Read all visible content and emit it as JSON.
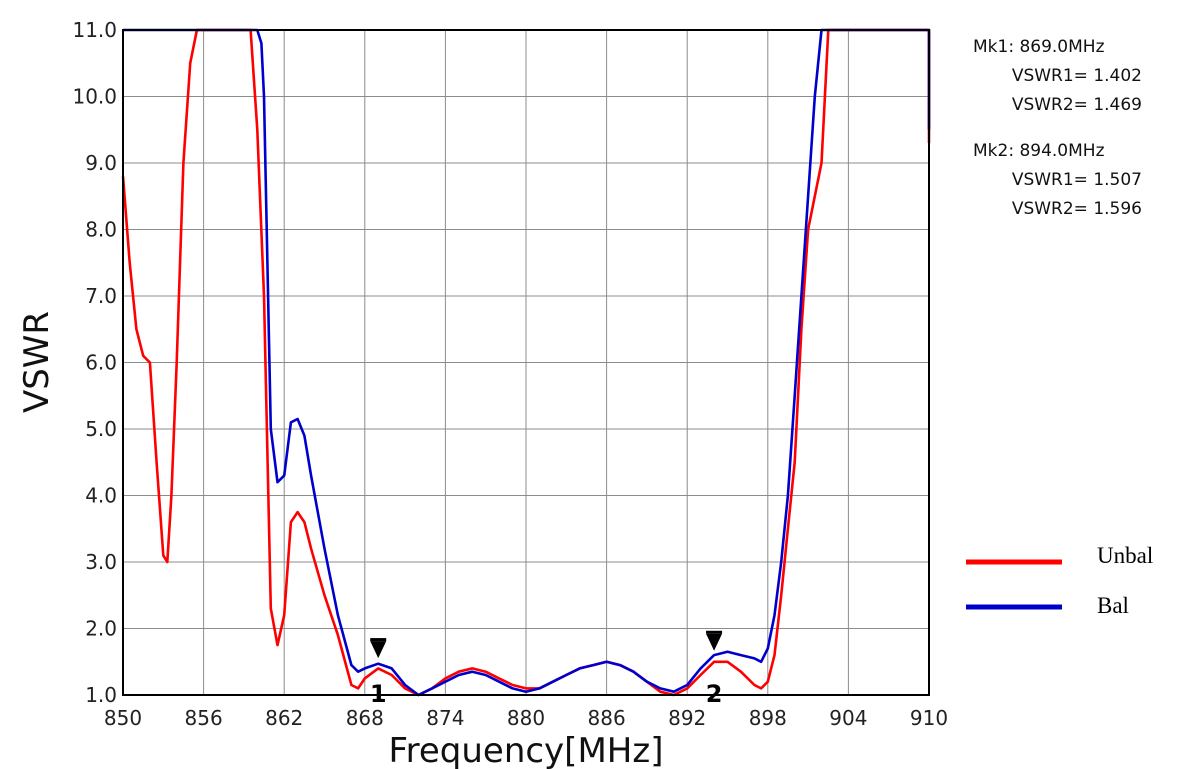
{
  "chart_data": {
    "type": "line",
    "xlabel": "Frequency[MHz]",
    "ylabel": "VSWR",
    "xlim": [
      850,
      910
    ],
    "ylim": [
      1.0,
      11.0
    ],
    "x_ticks": [
      "850",
      "856",
      "862",
      "868",
      "874",
      "880",
      "886",
      "892",
      "898",
      "904",
      "910"
    ],
    "y_ticks": [
      "1.0",
      "2.0",
      "3.0",
      "4.0",
      "5.0",
      "6.0",
      "7.0",
      "8.0",
      "9.0",
      "10.0",
      "11.0"
    ],
    "grid": true,
    "legend_position": "right",
    "series": [
      {
        "name": "Unbal",
        "color": "#ff0000",
        "points": [
          [
            850.0,
            8.8
          ],
          [
            850.5,
            7.5
          ],
          [
            851.0,
            6.5
          ],
          [
            851.5,
            6.1
          ],
          [
            852.0,
            6.0
          ],
          [
            852.5,
            4.5
          ],
          [
            853.0,
            3.1
          ],
          [
            853.3,
            3.0
          ],
          [
            853.6,
            4.0
          ],
          [
            854.0,
            6.0
          ],
          [
            854.5,
            9.0
          ],
          [
            855.0,
            10.5
          ],
          [
            855.5,
            11.0
          ],
          [
            856.0,
            11.0
          ],
          [
            858.0,
            11.0
          ],
          [
            859.5,
            11.0
          ],
          [
            860.0,
            9.5
          ],
          [
            860.5,
            7.0
          ],
          [
            861.0,
            2.3
          ],
          [
            861.5,
            1.75
          ],
          [
            862.0,
            2.2
          ],
          [
            862.5,
            3.6
          ],
          [
            863.0,
            3.75
          ],
          [
            863.5,
            3.6
          ],
          [
            864.0,
            3.2
          ],
          [
            865.0,
            2.5
          ],
          [
            866.0,
            1.9
          ],
          [
            867.0,
            1.15
          ],
          [
            867.5,
            1.1
          ],
          [
            868.0,
            1.25
          ],
          [
            869.0,
            1.4
          ],
          [
            870.0,
            1.3
          ],
          [
            871.0,
            1.1
          ],
          [
            872.0,
            1.0
          ],
          [
            873.0,
            1.1
          ],
          [
            874.0,
            1.25
          ],
          [
            875.0,
            1.35
          ],
          [
            876.0,
            1.4
          ],
          [
            877.0,
            1.35
          ],
          [
            878.0,
            1.25
          ],
          [
            879.0,
            1.15
          ],
          [
            880.0,
            1.1
          ],
          [
            881.0,
            1.1
          ],
          [
            882.0,
            1.2
          ],
          [
            883.0,
            1.3
          ],
          [
            884.0,
            1.4
          ],
          [
            885.0,
            1.45
          ],
          [
            886.0,
            1.5
          ],
          [
            887.0,
            1.45
          ],
          [
            888.0,
            1.35
          ],
          [
            889.0,
            1.2
          ],
          [
            890.0,
            1.05
          ],
          [
            891.0,
            1.0
          ],
          [
            892.0,
            1.1
          ],
          [
            893.0,
            1.3
          ],
          [
            894.0,
            1.5
          ],
          [
            895.0,
            1.5
          ],
          [
            896.0,
            1.35
          ],
          [
            897.0,
            1.15
          ],
          [
            897.5,
            1.1
          ],
          [
            898.0,
            1.2
          ],
          [
            898.5,
            1.6
          ],
          [
            899.0,
            2.5
          ],
          [
            899.5,
            3.5
          ],
          [
            900.0,
            4.5
          ],
          [
            900.5,
            6.5
          ],
          [
            901.0,
            8.0
          ],
          [
            901.5,
            8.5
          ],
          [
            902.0,
            9.0
          ],
          [
            902.5,
            11.0
          ],
          [
            904.0,
            11.0
          ],
          [
            906.0,
            11.0
          ],
          [
            908.0,
            11.0
          ],
          [
            910.0,
            11.0
          ],
          [
            910.0,
            9.3
          ]
        ]
      },
      {
        "name": "Bal",
        "color": "#0000cc",
        "points": [
          [
            850.0,
            11.0
          ],
          [
            852.0,
            11.0
          ],
          [
            854.0,
            11.0
          ],
          [
            856.0,
            11.0
          ],
          [
            858.0,
            11.0
          ],
          [
            860.0,
            11.0
          ],
          [
            860.3,
            10.8
          ],
          [
            860.5,
            10.0
          ],
          [
            861.0,
            5.0
          ],
          [
            861.5,
            4.2
          ],
          [
            862.0,
            4.3
          ],
          [
            862.5,
            5.1
          ],
          [
            863.0,
            5.15
          ],
          [
            863.5,
            4.9
          ],
          [
            864.0,
            4.3
          ],
          [
            865.0,
            3.2
          ],
          [
            866.0,
            2.2
          ],
          [
            867.0,
            1.45
          ],
          [
            867.5,
            1.35
          ],
          [
            868.0,
            1.4
          ],
          [
            869.0,
            1.47
          ],
          [
            870.0,
            1.4
          ],
          [
            871.0,
            1.15
          ],
          [
            872.0,
            1.0
          ],
          [
            873.0,
            1.1
          ],
          [
            874.0,
            1.2
          ],
          [
            875.0,
            1.3
          ],
          [
            876.0,
            1.35
          ],
          [
            877.0,
            1.3
          ],
          [
            878.0,
            1.2
          ],
          [
            879.0,
            1.1
          ],
          [
            880.0,
            1.05
          ],
          [
            881.0,
            1.1
          ],
          [
            882.0,
            1.2
          ],
          [
            883.0,
            1.3
          ],
          [
            884.0,
            1.4
          ],
          [
            885.0,
            1.45
          ],
          [
            886.0,
            1.5
          ],
          [
            887.0,
            1.45
          ],
          [
            888.0,
            1.35
          ],
          [
            889.0,
            1.2
          ],
          [
            890.0,
            1.1
          ],
          [
            891.0,
            1.05
          ],
          [
            892.0,
            1.15
          ],
          [
            893.0,
            1.4
          ],
          [
            894.0,
            1.6
          ],
          [
            895.0,
            1.65
          ],
          [
            896.0,
            1.6
          ],
          [
            897.0,
            1.55
          ],
          [
            897.5,
            1.5
          ],
          [
            898.0,
            1.7
          ],
          [
            898.5,
            2.2
          ],
          [
            899.0,
            3.0
          ],
          [
            899.5,
            4.0
          ],
          [
            900.0,
            5.5
          ],
          [
            900.5,
            7.0
          ],
          [
            901.0,
            8.5
          ],
          [
            901.5,
            10.0
          ],
          [
            902.0,
            11.0
          ],
          [
            904.0,
            11.0
          ],
          [
            906.0,
            11.0
          ],
          [
            908.0,
            11.0
          ],
          [
            910.0,
            11.0
          ],
          [
            910.0,
            9.5
          ]
        ]
      }
    ],
    "markers": [
      {
        "label": "1",
        "x": 869.0,
        "y": 1.45
      },
      {
        "label": "2",
        "x": 894.0,
        "y": 1.56
      }
    ],
    "marker_readouts": [
      [
        "Mk1:  869.0MHz",
        "VSWR1= 1.402",
        "VSWR2= 1.469"
      ],
      [
        "Mk2:  894.0MHz",
        "VSWR1= 1.507",
        "VSWR2= 1.596"
      ]
    ]
  }
}
